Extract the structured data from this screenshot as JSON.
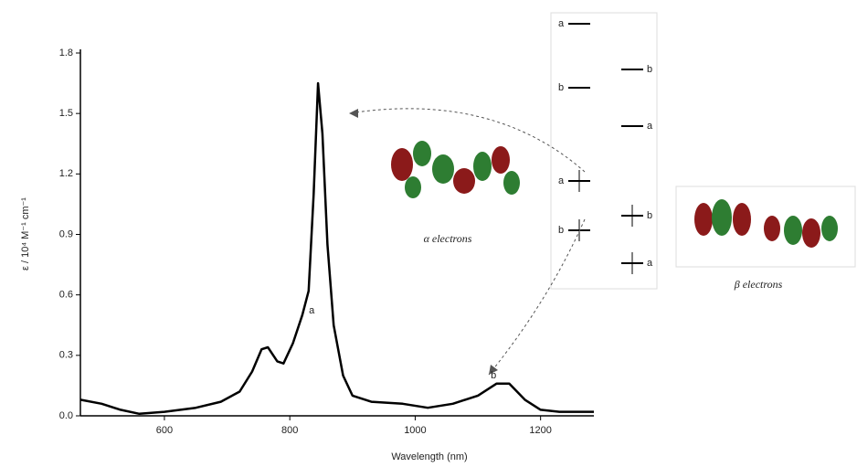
{
  "chart_data": {
    "type": "line",
    "x_label": "Wavelength (nm)",
    "y_label": "ε / 10⁴ M⁻¹ cm⁻¹",
    "xlim": [
      466,
      1285
    ],
    "ylim": [
      0,
      1.8
    ],
    "xticks": [
      600,
      800,
      1000,
      1200
    ],
    "yticks": [
      {
        "value": 0,
        "label": "0.0"
      },
      0.3,
      0.6,
      0.9,
      1.2,
      1.5,
      1.8
    ],
    "x": [
      466,
      500,
      530,
      560,
      600,
      650,
      690,
      720,
      740,
      755,
      765,
      780,
      790,
      805,
      820,
      830,
      838,
      845,
      852,
      860,
      870,
      885,
      900,
      930,
      980,
      1020,
      1060,
      1100,
      1130,
      1150,
      1175,
      1200,
      1230,
      1285
    ],
    "series": [
      {
        "color": "#000000",
        "values": [
          0.08,
          0.06,
          0.03,
          0.01,
          0.02,
          0.04,
          0.07,
          0.12,
          0.22,
          0.33,
          0.34,
          0.27,
          0.26,
          0.36,
          0.5,
          0.62,
          1.1,
          1.65,
          1.4,
          0.85,
          0.45,
          0.2,
          0.1,
          0.07,
          0.06,
          0.04,
          0.06,
          0.1,
          0.16,
          0.16,
          0.08,
          0.03,
          0.02,
          0.02
        ]
      }
    ],
    "annotations": [
      {
        "text": "a",
        "x": 835,
        "y": 0.52
      },
      {
        "text": "b",
        "x": 1125,
        "y": 0.2
      }
    ]
  },
  "orbital_diagram": {
    "alpha_label": "α electrons",
    "beta_label": "β electrons",
    "alpha_levels": [
      "a",
      "b",
      "a",
      "b"
    ],
    "beta_levels": [
      "b",
      "a",
      "b",
      "a"
    ]
  }
}
